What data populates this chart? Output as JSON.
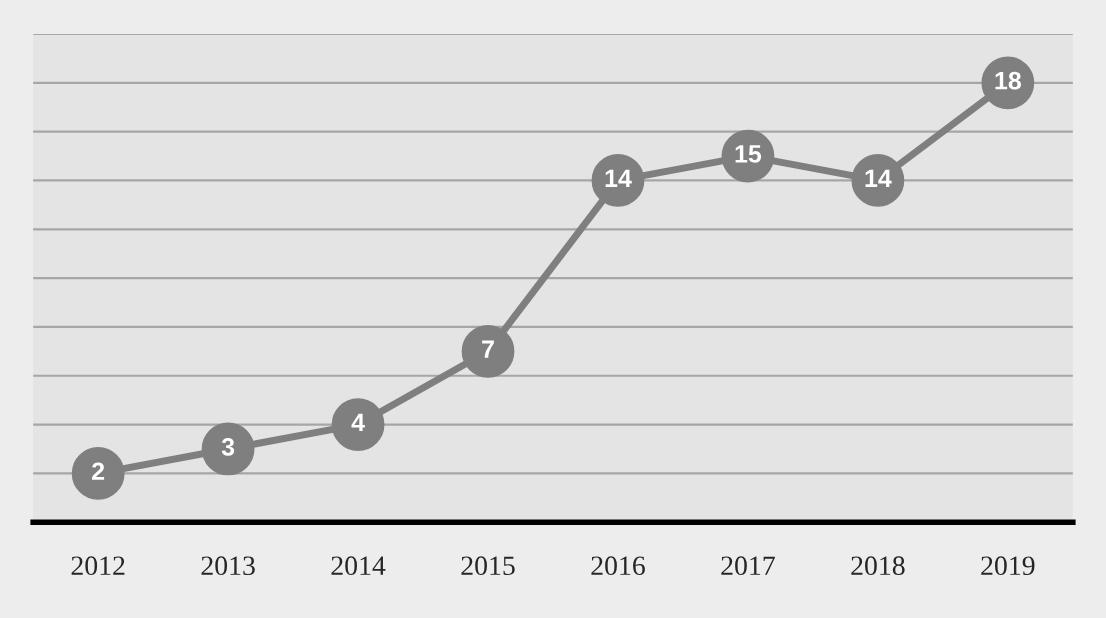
{
  "chart_data": {
    "type": "line",
    "categories": [
      "2012",
      "2013",
      "2014",
      "2015",
      "2016",
      "2017",
      "2018",
      "2019"
    ],
    "series": [
      {
        "color": "#7f7f7f",
        "values": [
          2,
          3,
          4,
          7,
          14,
          15,
          14,
          18
        ]
      }
    ],
    "ylim": [
      0,
      20
    ],
    "yticks": [
      {
        "value": 0,
        "label": null
      },
      {
        "value": 2,
        "label": null
      },
      {
        "value": 4,
        "label": null
      },
      {
        "value": 6,
        "label": null
      },
      {
        "value": 8,
        "label": null
      },
      {
        "value": 10,
        "label": null
      },
      {
        "value": 12,
        "label": null
      },
      {
        "value": 14,
        "label": null
      },
      {
        "value": 16,
        "label": null
      },
      {
        "value": 18,
        "label": null
      },
      {
        "value": 20,
        "label": null
      }
    ],
    "tick_labels": "x",
    "grid": "y",
    "marker": "circle",
    "line_style": "solid",
    "data_labels": true
  }
}
